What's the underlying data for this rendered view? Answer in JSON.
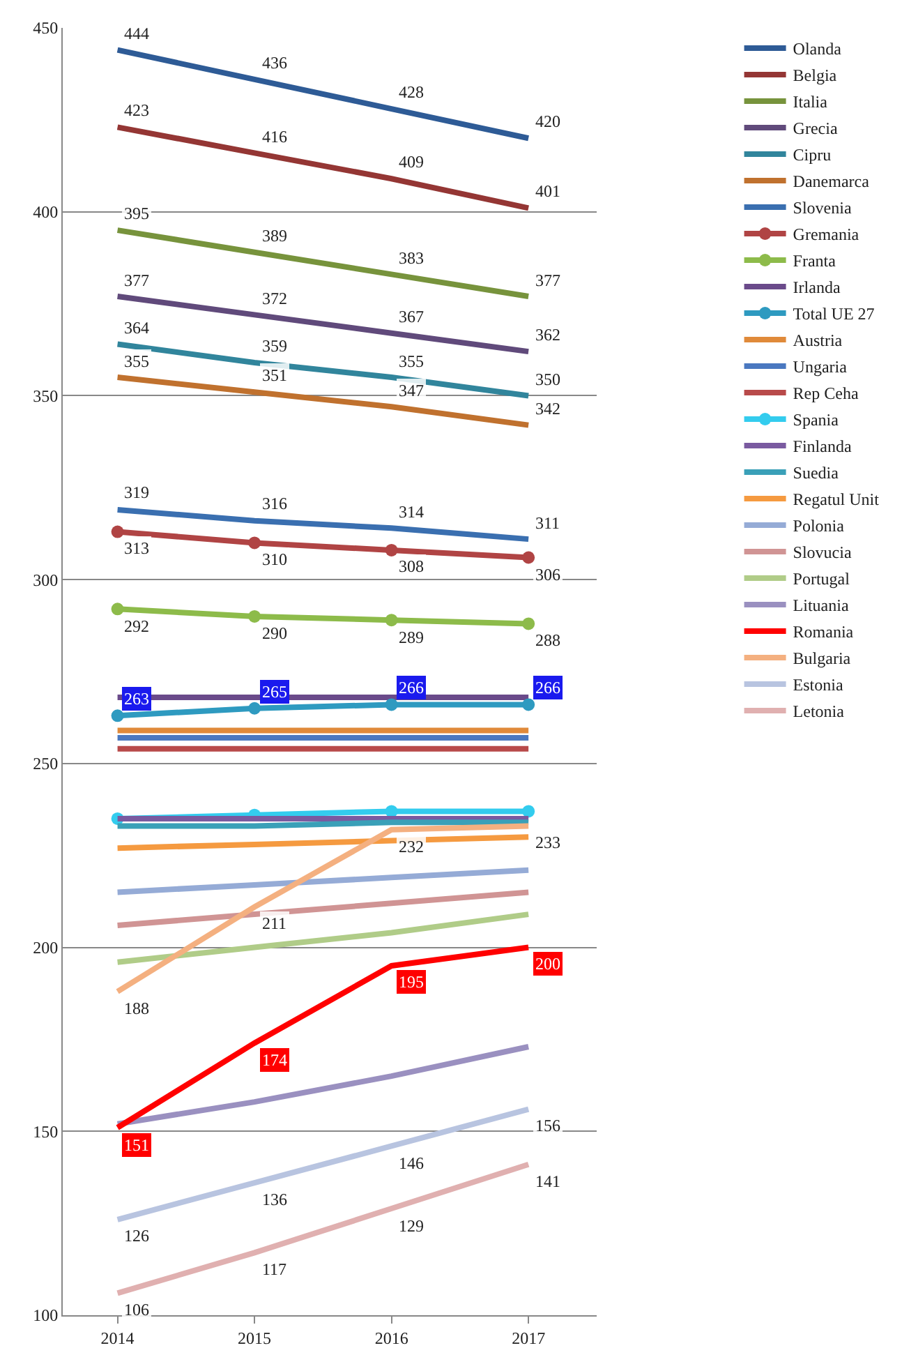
{
  "chart_data": {
    "type": "line",
    "categories": [
      "2014",
      "2015",
      "2016",
      "2017"
    ],
    "ylim": [
      100,
      450
    ],
    "yticks": [
      100,
      150,
      200,
      250,
      300,
      350,
      400,
      450
    ],
    "grid": "y",
    "legend": "right",
    "marker": "none",
    "line_style": "solid",
    "series": [
      {
        "name": "Olanda",
        "color": "#2e5b96",
        "values": [
          444,
          436,
          428,
          420
        ],
        "value_labels": [
          "444",
          "436",
          "428",
          "420"
        ]
      },
      {
        "name": "Belgia",
        "color": "#943634",
        "values": [
          423,
          416,
          409,
          401
        ],
        "value_labels": [
          "423",
          "416",
          "409",
          "401"
        ]
      },
      {
        "name": "Italia",
        "color": "#77933c",
        "values": [
          395,
          389,
          383,
          377
        ],
        "value_labels": [
          "395",
          "389",
          "383",
          "377"
        ]
      },
      {
        "name": "Grecia",
        "color": "#604a7b",
        "values": [
          377,
          372,
          367,
          362
        ],
        "value_labels": [
          "377",
          "372",
          "367",
          "362"
        ]
      },
      {
        "name": "Cipru",
        "color": "#31859c",
        "values": [
          364,
          359,
          355,
          350
        ],
        "value_labels": [
          "364",
          "359",
          "355",
          "350"
        ]
      },
      {
        "name": "Danemarca",
        "color": "#c0712e",
        "values": [
          355,
          351,
          347,
          342
        ],
        "value_labels": [
          "355",
          "351",
          "347",
          "342"
        ]
      },
      {
        "name": "Slovenia",
        "color": "#3a6fb0",
        "values": [
          319,
          316,
          314,
          311
        ],
        "value_labels": [
          "319",
          "316",
          "314",
          "311"
        ]
      },
      {
        "name": "Gremania",
        "color": "#b04444",
        "marker": "circle",
        "values": [
          313,
          310,
          308,
          306
        ],
        "value_labels": [
          "313",
          "310",
          "308",
          "306"
        ]
      },
      {
        "name": "Franta",
        "color": "#8dbb4a",
        "marker": "circle",
        "values": [
          292,
          290,
          289,
          288
        ],
        "value_labels": [
          "292",
          "290",
          "289",
          "288"
        ]
      },
      {
        "name": "Irlanda",
        "color": "#6a4a8a",
        "values": [
          268,
          268,
          268,
          268
        ]
      },
      {
        "name": "Total UE 27",
        "color": "#2e9ac0",
        "marker": "circle",
        "values": [
          263,
          265,
          266,
          266
        ],
        "value_labels": [
          "263",
          "265",
          "266",
          "266"
        ]
      },
      {
        "name": "Austria",
        "color": "#e08a3a",
        "values": [
          259,
          259,
          259,
          259
        ]
      },
      {
        "name": "Ungaria",
        "color": "#4a78c0",
        "values": [
          257,
          257,
          257,
          257
        ]
      },
      {
        "name": "Rep Ceha",
        "color": "#b84a4a",
        "values": [
          254,
          254,
          254,
          254
        ]
      },
      {
        "name": "Spania",
        "color": "#33ccee",
        "marker": "circle",
        "values": [
          235,
          236,
          237,
          237
        ]
      },
      {
        "name": "Finlanda",
        "color": "#7a5aa0",
        "values": [
          235,
          235,
          235,
          235
        ]
      },
      {
        "name": "Suedia",
        "color": "#3aa0b8",
        "values": [
          233,
          233,
          234,
          234
        ]
      },
      {
        "name": "Regatul Unit",
        "color": "#f59a40",
        "values": [
          227,
          228,
          229,
          230
        ]
      },
      {
        "name": "Polonia",
        "color": "#95abd6",
        "values": [
          215,
          217,
          219,
          221
        ]
      },
      {
        "name": "Slovucia",
        "color": "#d09494",
        "values": [
          206,
          209,
          212,
          215
        ]
      },
      {
        "name": "Portugal",
        "color": "#b0cc88",
        "values": [
          196,
          200,
          204,
          209
        ]
      },
      {
        "name": "Lituania",
        "color": "#9a90c0",
        "values": [
          152,
          158,
          165,
          173
        ]
      },
      {
        "name": "Romania",
        "color": "#ff0000",
        "values": [
          151,
          174,
          195,
          200
        ],
        "value_labels": [
          "151",
          "174",
          "195",
          "200"
        ]
      },
      {
        "name": "Bulgaria",
        "color": "#f4b080",
        "values": [
          188,
          211,
          232,
          233
        ],
        "value_labels": [
          "188",
          "211",
          "232",
          "233"
        ]
      },
      {
        "name": "Estonia",
        "color": "#b8c4e0",
        "values": [
          126,
          136,
          146,
          156
        ],
        "value_labels": [
          "126",
          "136",
          "146",
          "156"
        ]
      },
      {
        "name": "Letonia",
        "color": "#e0b0b0",
        "values": [
          106,
          117,
          129,
          141
        ],
        "value_labels": [
          "106",
          "117",
          "129",
          "141"
        ]
      }
    ]
  }
}
